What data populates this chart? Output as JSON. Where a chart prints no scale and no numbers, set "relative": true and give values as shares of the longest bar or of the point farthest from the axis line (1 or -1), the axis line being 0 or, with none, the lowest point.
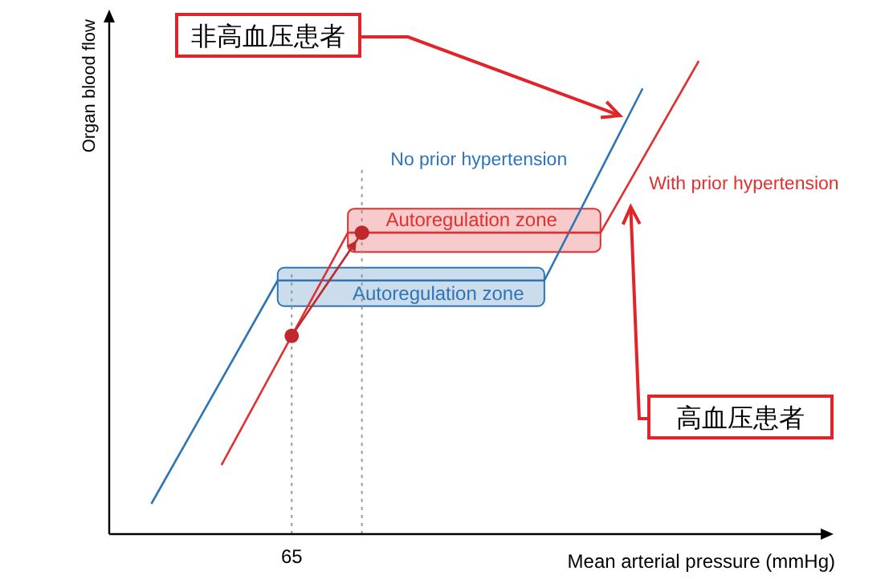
{
  "chart_data": {
    "type": "line",
    "relative": true,
    "xlabel": "Mean arterial pressure (mmHg)",
    "ylabel": "Organ blood flow",
    "categories": [
      null,
      null,
      null,
      null,
      null,
      null,
      null,
      null,
      null,
      null,
      null,
      null,
      null,
      null,
      null,
      null,
      null,
      null,
      null,
      null,
      null,
      null,
      null,
      null,
      null,
      null,
      null,
      null,
      null,
      null,
      null,
      null,
      null,
      null,
      null,
      null,
      null,
      null,
      null,
      null,
      null,
      null,
      null,
      null,
      null,
      null,
      null,
      null,
      null,
      null,
      null
    ],
    "series": [
      {
        "name": "No prior hypertension",
        "color": "#2e75b6",
        "values": [
          null,
          null,
          null,
          0.064,
          null,
          null,
          null,
          null,
          null,
          null,
          null,
          null,
          0.536,
          null,
          null,
          null,
          null,
          null,
          null,
          null,
          null,
          null,
          null,
          null,
          null,
          null,
          null,
          null,
          null,
          null,
          null,
          0.536,
          null,
          null,
          null,
          null,
          null,
          null,
          0.942,
          null,
          null,
          null,
          null,
          null,
          null,
          null,
          null,
          null,
          null,
          null,
          null
        ]
      },
      {
        "name": "With prior hypertension",
        "color": "#e0302f",
        "values": [
          null,
          null,
          null,
          null,
          null,
          null,
          null,
          null,
          0.146,
          null,
          null,
          null,
          null,
          null,
          null,
          null,
          null,
          0.637,
          null,
          null,
          null,
          null,
          null,
          null,
          null,
          null,
          null,
          null,
          null,
          null,
          null,
          null,
          null,
          null,
          null,
          0.637,
          null,
          null,
          null,
          null,
          null,
          null,
          1,
          null,
          null,
          null,
          null,
          null,
          null,
          null,
          null
        ]
      },
      {
        "color": "#c0282e",
        "marker": "circle",
        "values": [
          null,
          null,
          null,
          null,
          null,
          null,
          null,
          null,
          null,
          null,
          null,
          null,
          null,
          0.419,
          null,
          null,
          null,
          null,
          0.637,
          null,
          null,
          null,
          null,
          null,
          null,
          null,
          null,
          null,
          null,
          null,
          null,
          null,
          null,
          null,
          null,
          null,
          null,
          null,
          null,
          null,
          null,
          null,
          null,
          null,
          null,
          null,
          null,
          null,
          null,
          null,
          null
        ]
      }
    ],
    "annotations": [
      "Autoregulation zone",
      "Autoregulation zone",
      "非高血压患者",
      "高血压患者",
      "65"
    ]
  }
}
